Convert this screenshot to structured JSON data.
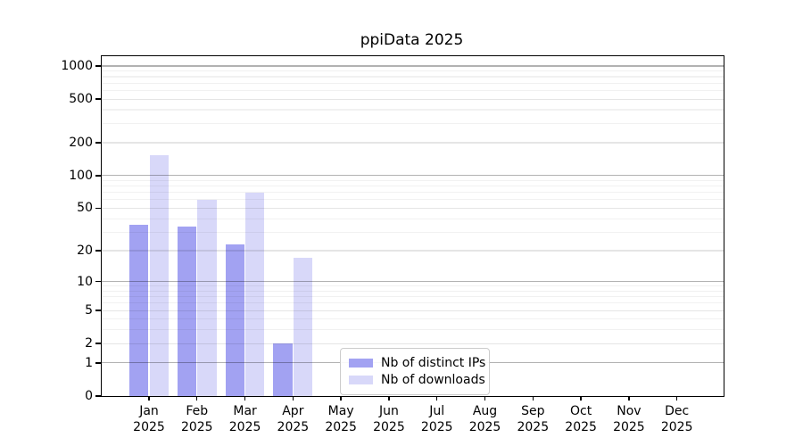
{
  "title": "ppiData 2025",
  "chart_data": {
    "type": "bar",
    "title": "ppiData 2025",
    "categories": [
      "Jan",
      "Feb",
      "Mar",
      "Apr",
      "May",
      "Jun",
      "Jul",
      "Aug",
      "Sep",
      "Oct",
      "Nov",
      "Dec"
    ],
    "year_label": "2025",
    "series": [
      {
        "name": "Nb of distinct IPs",
        "color": "#a2a2f2",
        "values": [
          35,
          34,
          23,
          2,
          0,
          0,
          0,
          0,
          0,
          0,
          0,
          0
        ]
      },
      {
        "name": "Nb of downloads",
        "color": "#d8d8f9",
        "values": [
          155,
          60,
          70,
          17,
          0,
          0,
          0,
          0,
          0,
          0,
          0,
          0
        ]
      }
    ],
    "xlabel": "",
    "ylabel": "",
    "yscale": "log1p",
    "ylim": [
      0,
      1180
    ],
    "yticks": [
      0,
      1,
      2,
      5,
      10,
      20,
      50,
      100,
      200,
      500,
      1000
    ],
    "y_major_gridlines": [
      1,
      10,
      100,
      1000
    ],
    "y_minor_gridlines": [
      2,
      3,
      4,
      5,
      6,
      7,
      8,
      9,
      20,
      30,
      40,
      50,
      60,
      70,
      80,
      90,
      200,
      300,
      400,
      500,
      600,
      700,
      800,
      900
    ],
    "grid": true,
    "legend_position": "inside lower-left-of-center"
  },
  "colors": {
    "background": "#ffffff",
    "spine": "#000000",
    "bar_distinct_ips": "#a2a2f2",
    "bar_downloads": "#d8d8f9",
    "grid_major": "rgba(0,0,0,0.30)",
    "grid_minor_labeled": "rgba(0,0,0,0.10)",
    "grid_minor": "rgba(0,0,0,0.055)",
    "legend_border": "#cccccc"
  }
}
